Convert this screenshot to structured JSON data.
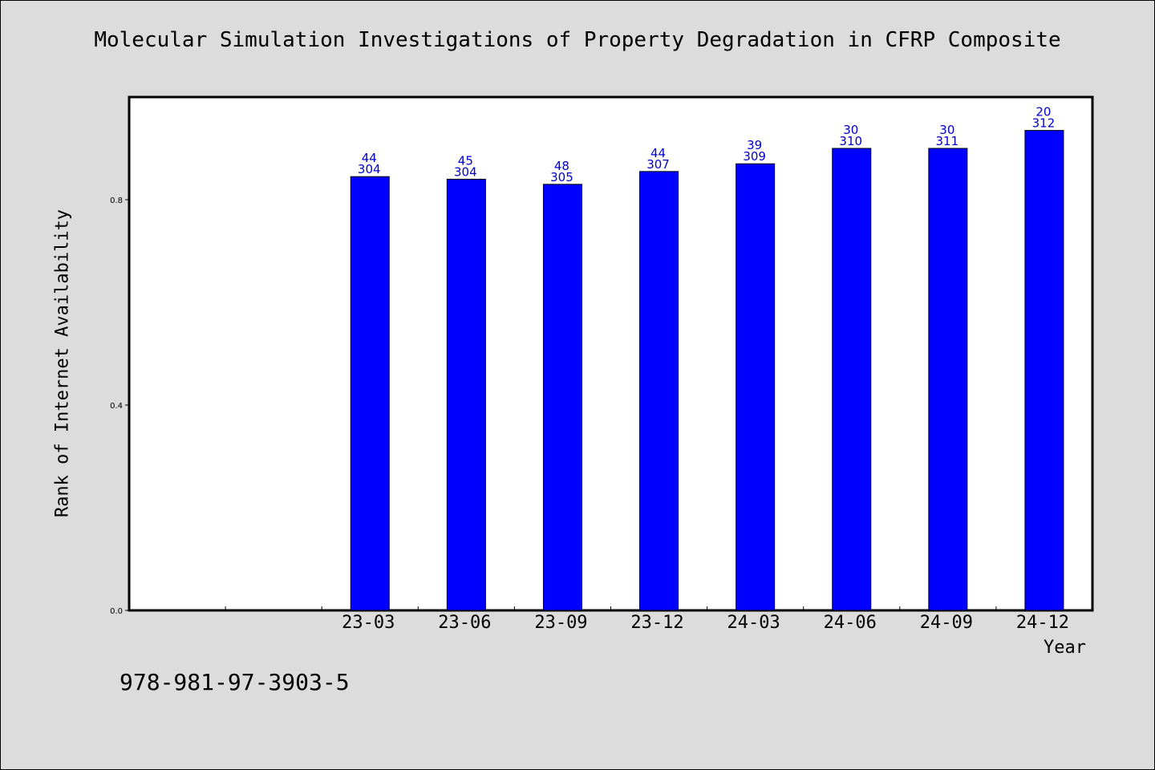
{
  "chart_data": {
    "type": "bar",
    "title": "Molecular Simulation Investigations of Property Degradation in CFRP Composite",
    "xlabel": "Year",
    "ylabel": "Rank of Internet Availability",
    "categories": [
      "",
      "",
      "23-03",
      "23-06",
      "23-09",
      "23-12",
      "24-03",
      "24-06",
      "24-09",
      "24-12"
    ],
    "values": [
      null,
      null,
      0.845,
      0.84,
      0.83,
      0.855,
      0.87,
      0.9,
      0.9,
      0.935
    ],
    "data_labels": [
      null,
      null,
      [
        "44",
        "304"
      ],
      [
        "45",
        "304"
      ],
      [
        "48",
        "305"
      ],
      [
        "44",
        "307"
      ],
      [
        "39",
        "309"
      ],
      [
        "30",
        "310"
      ],
      [
        "30",
        "311"
      ],
      [
        "20",
        "312"
      ]
    ],
    "ylim": [
      0,
      1.0
    ],
    "yticks": [
      0.0,
      0.4,
      0.8
    ],
    "ytick_labels": [
      "0.0",
      "0.4",
      "0.8"
    ],
    "grid": false,
    "colors": {
      "bar": "#0000ff",
      "data_label": "#0000cc",
      "axis": "#000000"
    }
  },
  "footer": {
    "isbn": "978-981-97-3903-5"
  }
}
